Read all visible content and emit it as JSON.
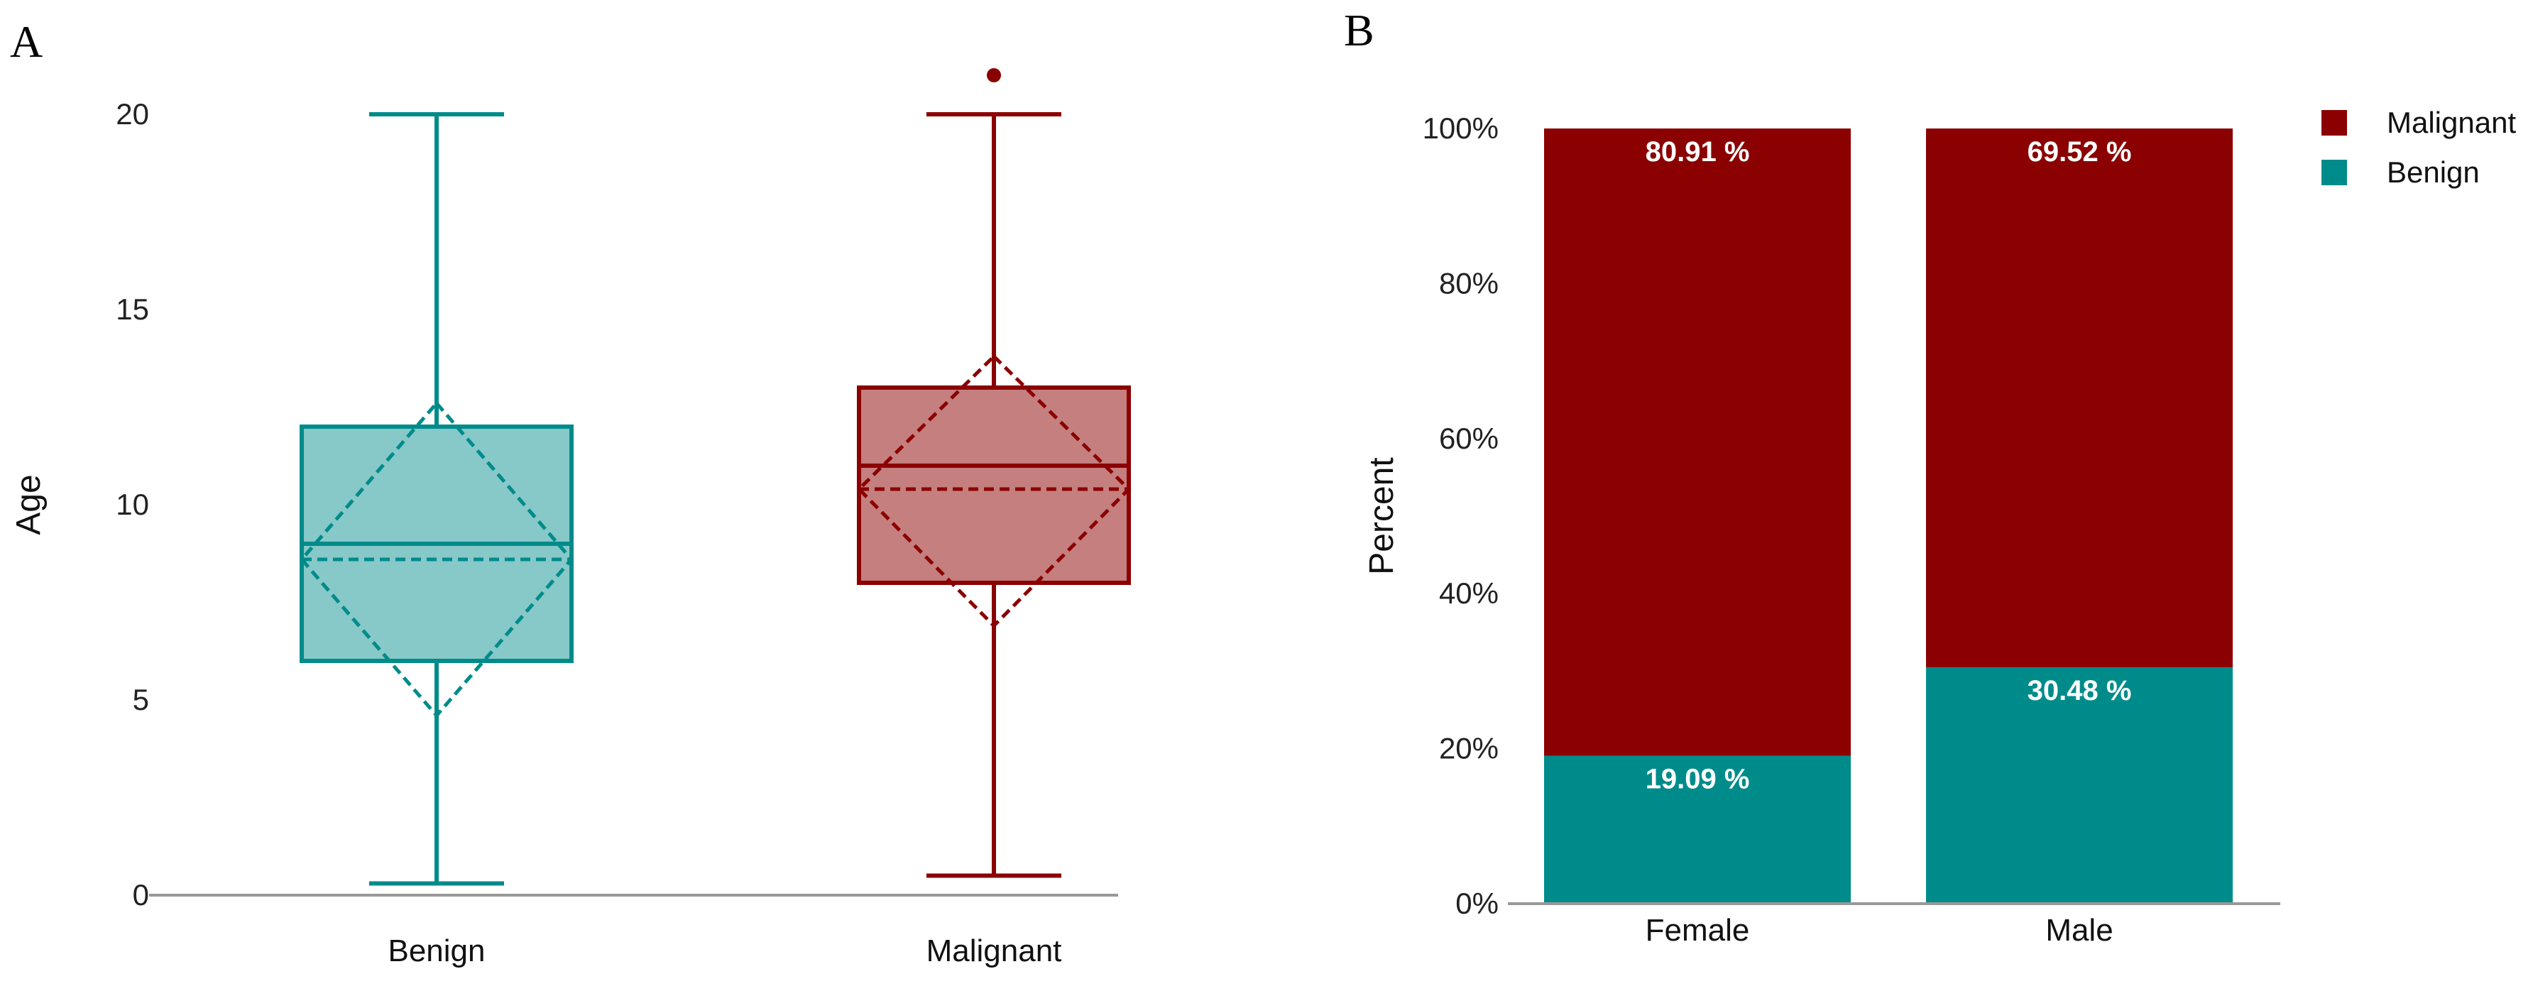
{
  "panel_labels": {
    "a": "A",
    "b": "B"
  },
  "colors": {
    "benign": "#008B8B",
    "malignant": "#8B0000",
    "axis": "#999999"
  },
  "chart_data": [
    {
      "type": "boxplot",
      "panel": "A",
      "ylabel": "Age",
      "xlabel": "",
      "ylim": [
        0,
        21.5
      ],
      "yticks": [
        0,
        5,
        10,
        15,
        20
      ],
      "categories": [
        "Benign",
        "Malignant"
      ],
      "boxes": [
        {
          "name": "Benign",
          "min": 0.3,
          "q1": 6,
          "median": 9,
          "q3": 12,
          "max": 20,
          "mean": 8.6,
          "ci_low": 4.6,
          "ci_high": 12.6,
          "outliers": []
        },
        {
          "name": "Malignant",
          "min": 0.5,
          "q1": 8,
          "median": 11,
          "q3": 13,
          "max": 20,
          "mean": 10.4,
          "ci_low": 6.9,
          "ci_high": 13.8,
          "outliers": [
            21
          ]
        }
      ]
    },
    {
      "type": "bar",
      "stacked": true,
      "panel": "B",
      "ylabel": "Percent",
      "xlabel": "",
      "ylim": [
        0,
        100
      ],
      "yticks": [
        "0%",
        "20%",
        "40%",
        "60%",
        "80%",
        "100%"
      ],
      "categories": [
        "Female",
        "Male"
      ],
      "series": [
        {
          "name": "Benign",
          "values": [
            19.09,
            30.48
          ],
          "labels": [
            "19.09 %",
            "30.48 %"
          ]
        },
        {
          "name": "Malignant",
          "values": [
            80.91,
            69.52
          ],
          "labels": [
            "80.91 %",
            "69.52 %"
          ]
        }
      ],
      "legend": [
        "Malignant",
        "Benign"
      ],
      "legend_position": "top-right"
    }
  ]
}
